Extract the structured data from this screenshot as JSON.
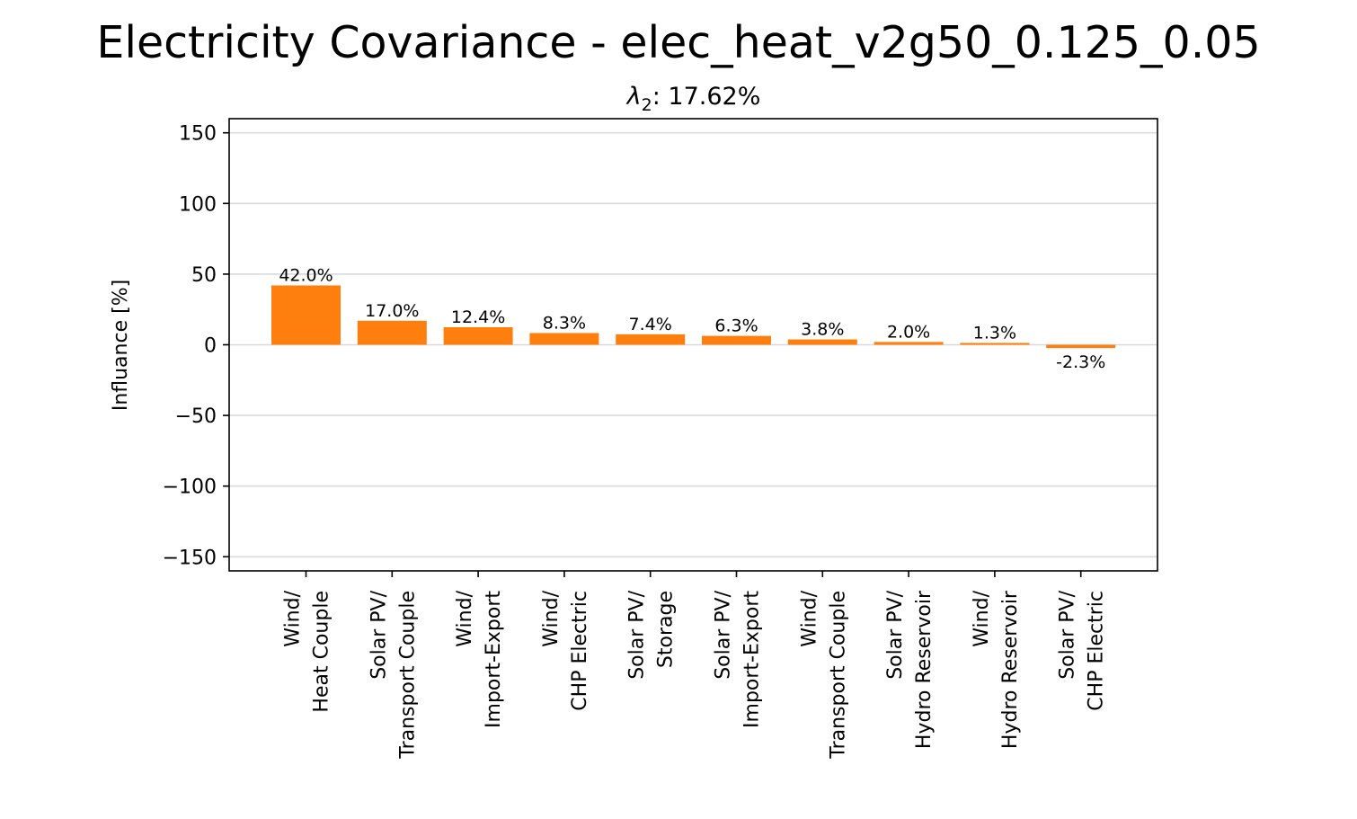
{
  "chart_data": {
    "type": "bar",
    "title": "Electricity Covariance - elec_heat_v2g50_0.125_0.05",
    "subtitle_symbol": "λ",
    "subtitle_subscript": "2",
    "subtitle_value": ": 17.62%",
    "xlabel": "",
    "ylabel": "Influance [%]",
    "ylim": [
      -160,
      160
    ],
    "yticks": [
      150,
      100,
      50,
      0,
      -50,
      -100,
      -150
    ],
    "ytick_labels": [
      "150",
      "100",
      "50",
      "0",
      "−50",
      "−100",
      "−150"
    ],
    "grid": "horizontal",
    "bar_color": "#ff7f0e",
    "categories": [
      [
        "Wind/",
        "Heat Couple"
      ],
      [
        "Solar PV/",
        "Transport Couple"
      ],
      [
        "Wind/",
        "Import-Export"
      ],
      [
        "Wind/",
        "CHP Electric"
      ],
      [
        "Solar PV/",
        "Storage"
      ],
      [
        "Solar PV/",
        "Import-Export"
      ],
      [
        "Wind/",
        "Transport Couple"
      ],
      [
        "Solar PV/",
        "Hydro Reservoir"
      ],
      [
        "Wind/",
        "Hydro Reservoir"
      ],
      [
        "Solar PV/",
        "CHP Electric"
      ]
    ],
    "values": [
      42.0,
      17.0,
      12.4,
      8.3,
      7.4,
      6.3,
      3.8,
      2.0,
      1.3,
      -2.3
    ],
    "value_labels": [
      "42.0%",
      "17.0%",
      "12.4%",
      "8.3%",
      "7.4%",
      "6.3%",
      "3.8%",
      "2.0%",
      "1.3%",
      "-2.3%"
    ]
  }
}
